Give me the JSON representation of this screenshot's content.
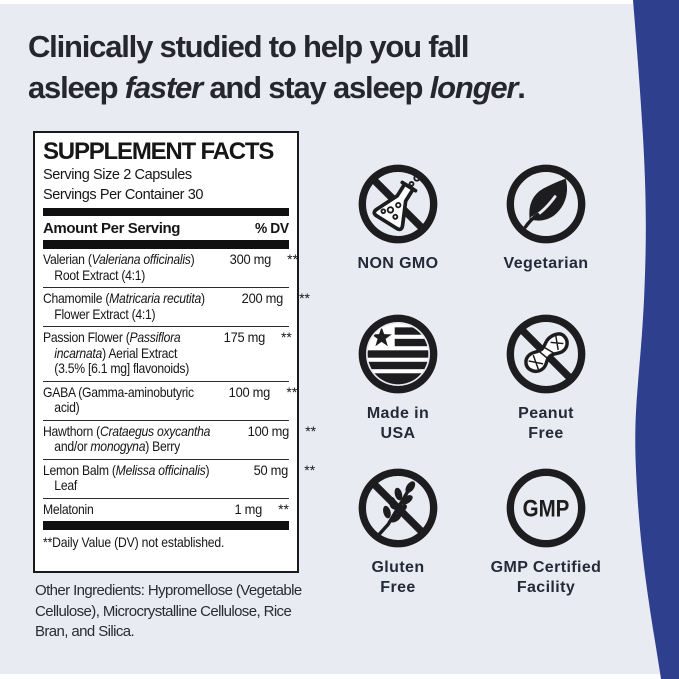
{
  "colors": {
    "bg": "#e9ebf2",
    "navy": "#2e3f8e",
    "ink": "#26272e",
    "label": "#252a38",
    "icon": "#1d1d20",
    "panel_bg": "#ffffff"
  },
  "headline": {
    "line1": "Clinically studied to help you fall",
    "line2_segments": [
      {
        "text": "asleep ",
        "em": false
      },
      {
        "text": "faster",
        "em": true
      },
      {
        "text": " and stay asleep ",
        "em": false
      },
      {
        "text": "longer",
        "em": true
      },
      {
        "text": ".",
        "em": false
      }
    ]
  },
  "supplement_facts": {
    "title": "SUPPLEMENT FACTS",
    "serving_size": "Serving Size 2 Capsules",
    "servings_per_container": "Servings Per Container 30",
    "header": {
      "amount_label": "Amount Per Serving",
      "dv_label": "% DV"
    },
    "rows": [
      {
        "name_lines": [
          [
            {
              "t": "Valerian ("
            },
            {
              "t": "Valeriana officinalis",
              "i": 1
            },
            {
              "t": ")"
            }
          ],
          [
            {
              "t": "Root Extract (4:1)"
            }
          ]
        ],
        "amount": "300 mg",
        "dv": "**"
      },
      {
        "name_lines": [
          [
            {
              "t": "Chamomile ("
            },
            {
              "t": "Matricaria recutita",
              "i": 1
            },
            {
              "t": ")"
            }
          ],
          [
            {
              "t": "Flower Extract (4:1)"
            }
          ]
        ],
        "amount": "200 mg",
        "dv": "**"
      },
      {
        "name_lines": [
          [
            {
              "t": "Passion Flower ("
            },
            {
              "t": "Passiflora",
              "i": 1
            }
          ],
          [
            {
              "t": "incarnata",
              "i": 1
            },
            {
              "t": ") Aerial Extract"
            }
          ],
          [
            {
              "t": "(3.5% [6.1 mg] flavonoids)"
            }
          ]
        ],
        "amount": "175 mg",
        "dv": "**"
      },
      {
        "name_lines": [
          [
            {
              "t": "GABA (Gamma-aminobutyric"
            }
          ],
          [
            {
              "t": "acid)"
            }
          ]
        ],
        "amount": "100 mg",
        "dv": "**"
      },
      {
        "name_lines": [
          [
            {
              "t": "Hawthorn ("
            },
            {
              "t": "Crataegus oxycantha",
              "i": 1
            }
          ],
          [
            {
              "t": "and/or "
            },
            {
              "t": "monogyna",
              "i": 1
            },
            {
              "t": ") Berry"
            }
          ]
        ],
        "amount": "100 mg",
        "dv": "**"
      },
      {
        "name_lines": [
          [
            {
              "t": "Lemon Balm ("
            },
            {
              "t": "Melissa officinalis",
              "i": 1
            },
            {
              "t": ")"
            }
          ],
          [
            {
              "t": "Leaf"
            }
          ]
        ],
        "amount": "50 mg",
        "dv": "**"
      },
      {
        "name_lines": [
          [
            {
              "t": "Melatonin"
            }
          ]
        ],
        "amount": "1 mg",
        "dv": "**"
      }
    ],
    "footnote": "**Daily Value (DV) not established."
  },
  "other_ingredients": "Other Ingredients: Hypromellose (Vegetable Cellulose), Microcrystalline Cellulose, Rice Bran, and Silica.",
  "badges": [
    {
      "id": "non-gmo",
      "icon": "no-flask",
      "label_lines": [
        "NON GMO"
      ]
    },
    {
      "id": "vegetarian",
      "icon": "leaf",
      "label_lines": [
        "Vegetarian"
      ]
    },
    {
      "id": "made-in-usa",
      "icon": "usa-flag",
      "label_lines": [
        "Made in",
        "USA"
      ]
    },
    {
      "id": "peanut-free",
      "icon": "no-peanut",
      "label_lines": [
        "Peanut",
        "Free"
      ]
    },
    {
      "id": "gluten-free",
      "icon": "no-wheat",
      "label_lines": [
        "Gluten",
        "Free"
      ]
    },
    {
      "id": "gmp-certified",
      "icon": "gmp-seal",
      "icon_text": "GMP",
      "label_lines": [
        "GMP Certified",
        "Facility"
      ]
    }
  ]
}
